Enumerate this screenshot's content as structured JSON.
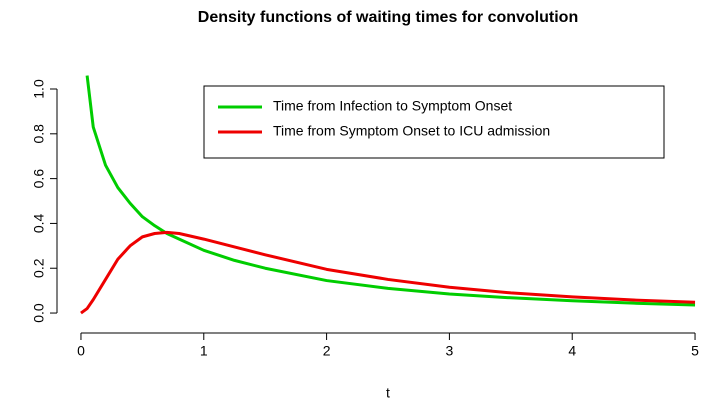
{
  "chart_data": {
    "type": "line",
    "title": "Density functions of waiting times for convolution",
    "x_label": "t",
    "x": [
      0,
      0.05,
      0.1,
      0.2,
      0.3,
      0.4,
      0.5,
      0.6,
      0.7,
      0.8,
      1,
      1.25,
      1.5,
      2,
      2.5,
      3,
      3.5,
      4,
      4.5,
      5
    ],
    "series": [
      {
        "name": "Time from Infection to Symptom Onset",
        "color": "#00cd00",
        "values": [
          null,
          1.06,
          0.83,
          0.66,
          0.56,
          0.49,
          0.43,
          0.39,
          0.355,
          0.33,
          0.28,
          0.235,
          0.2,
          0.145,
          0.11,
          0.085,
          0.068,
          0.055,
          0.044,
          0.036
        ]
      },
      {
        "name": "Time from Symptom Onset to ICU admission",
        "color": "#ee0000",
        "values": [
          0,
          0.02,
          0.06,
          0.15,
          0.24,
          0.3,
          0.34,
          0.355,
          0.36,
          0.355,
          0.33,
          0.295,
          0.26,
          0.195,
          0.15,
          0.115,
          0.09,
          0.072,
          0.058,
          0.048
        ]
      }
    ],
    "xlim": [
      -0.2,
      5.2
    ],
    "ylim": [
      -0.04,
      1.1
    ],
    "xticks": [
      0,
      1,
      2,
      3,
      4,
      5
    ],
    "yticks": [
      {
        "value": 0,
        "label": "0.0"
      },
      0.2,
      0.4,
      0.6,
      0.8,
      {
        "value": 1,
        "label": "1.0"
      }
    ],
    "legend": "top-right"
  }
}
